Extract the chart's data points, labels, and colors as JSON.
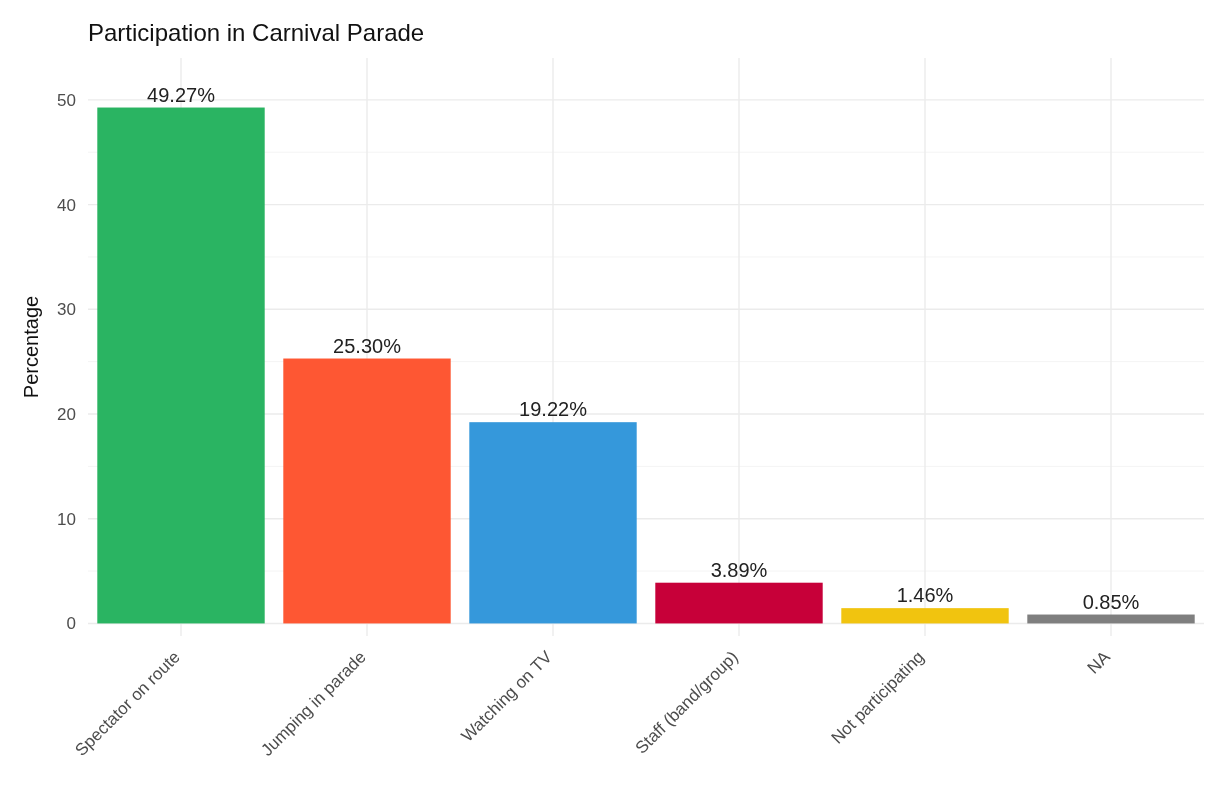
{
  "chart_data": {
    "type": "bar",
    "title": "Participation in Carnival Parade",
    "ylabel": "Percentage",
    "categories": [
      "Spectator on route",
      "Jumping in parade",
      "Watching on TV",
      "Staff (band/group)",
      "Not participating",
      "NA"
    ],
    "values": [
      49.27,
      25.3,
      19.22,
      3.89,
      1.46,
      0.85
    ],
    "colors": [
      "#2ab462",
      "#fe5733",
      "#3598db",
      "#c70039",
      "#f1c40f",
      "#7f7f7f"
    ],
    "value_labels": [
      "49.27%",
      "25.30%",
      "19.22%",
      "3.89%",
      "1.46%",
      "0.85%"
    ],
    "ylim": [
      -1.2,
      54
    ],
    "yticks": [
      0,
      {
        "value": 5,
        "label": null
      },
      10,
      {
        "value": 15,
        "label": null
      },
      20,
      {
        "value": 25,
        "label": null
      },
      30,
      {
        "value": 35,
        "label": null
      },
      40,
      {
        "value": 45,
        "label": null
      },
      50
    ],
    "grid": true
  }
}
